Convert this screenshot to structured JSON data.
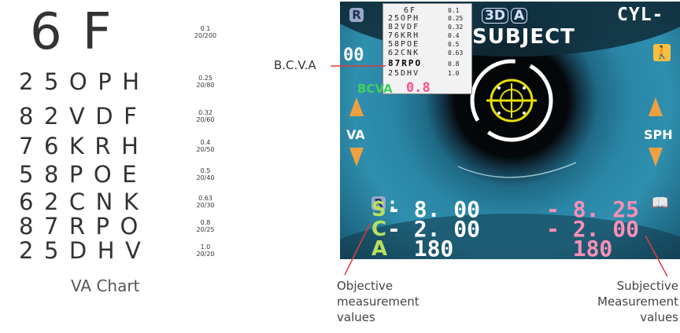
{
  "va_chart": {
    "big_row": {
      "letters": "6F",
      "fraction": [
        "0.1",
        "20/200"
      ]
    },
    "rows": [
      {
        "letters": "25OPH",
        "fraction": [
          "0.25",
          "20/80"
        ]
      },
      {
        "letters": "82VDF",
        "fraction": [
          "0.32",
          "20/60"
        ]
      },
      {
        "letters": "76KRH",
        "fraction": [
          "0.4",
          "20/50"
        ]
      },
      {
        "letters": "58POE",
        "fraction": [
          "0.5",
          "20/40"
        ]
      },
      {
        "letters": "62CNK",
        "fraction": [
          "0.63",
          "20/30"
        ]
      },
      {
        "letters": "87RPO",
        "fraction": [
          "0.8",
          "20/25"
        ]
      },
      {
        "letters": "25DHV",
        "fraction": [
          "1.0",
          "20/20"
        ]
      }
    ],
    "caption": "VA Chart"
  },
  "monitor": {
    "eye_badge": "R",
    "mini_chart": [
      {
        "letters": "6F",
        "value": "0.1"
      },
      {
        "letters": "25OPH",
        "value": "0.25"
      },
      {
        "letters": "82VDF",
        "value": "0.32"
      },
      {
        "letters": "76KRH",
        "value": "0.4"
      },
      {
        "letters": "58POE",
        "value": "0.5"
      },
      {
        "letters": "62CNK",
        "value": "0.63"
      },
      {
        "letters": "87RPO",
        "value": "0.8",
        "selected": true
      },
      {
        "letters": "25DHV",
        "value": "1.0"
      }
    ],
    "mode_3d": "3D",
    "mode_a": "A",
    "cyl_label": "CYL-",
    "subject_label": "SUBJECT",
    "zero_label": "00",
    "bcva_label": "BCVA",
    "bcva_value": "0.8",
    "va_label": "VA",
    "sph_label": "SPH",
    "measure_eye": "R",
    "measure_colon": ":",
    "measurements": [
      {
        "letter": "S",
        "objective": "- 8. 00",
        "subjective": "- 8. 25"
      },
      {
        "letter": "C",
        "objective": "- 2. 00",
        "subjective": "- 2. 00"
      },
      {
        "letter": "A",
        "objective": "  180",
        "subjective": "  180"
      }
    ],
    "colors": {
      "green": "#b8e060",
      "pink": "#ff8fb6",
      "orange": "#f0a040"
    }
  },
  "annotations": {
    "bcva_callout": "B.C.V.A",
    "objective": [
      "Objective",
      "measurement",
      "values"
    ],
    "subjective": [
      "Subjective",
      "Measurement",
      "values"
    ]
  }
}
